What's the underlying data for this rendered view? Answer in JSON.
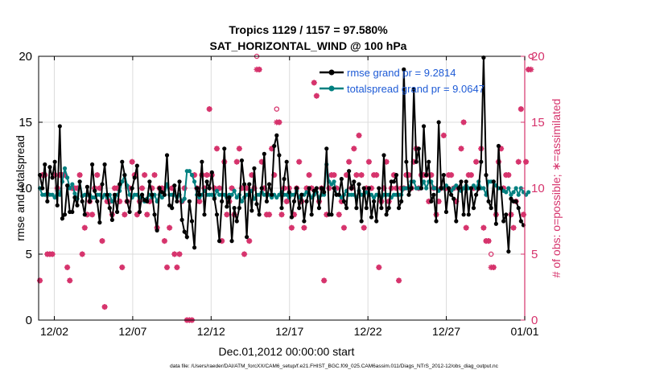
{
  "chart_data": {
    "type": "line",
    "title": "Tropics 1129 / 1157 = 97.580%",
    "subtitle": "SAT_HORIZONTAL_WIND @ 100 hPa",
    "xlabel": "Dec.01,2012 00:00:00 start",
    "ylabel": "rmse and totalspread",
    "ylabel_right": "# of obs: o=possible; ∗=assimilated",
    "footer": "data file: /Users/raeder/DAI/ATM_forcXX/CAM6_setup/f.e21.FHIST_BGC.f09_025.CAM6assim.011/Diags_NTrS_2012-12/obs_diag_output.nc",
    "xlim": [
      0.5,
      31.5
    ],
    "ylim": [
      0,
      20
    ],
    "ylim_right": [
      0,
      20
    ],
    "x_ticks": [
      1.5,
      6.5,
      11.5,
      16.5,
      21.5,
      26.5,
      31.5
    ],
    "x_tick_labels": [
      "12/02",
      "12/07",
      "12/12",
      "12/17",
      "12/22",
      "12/27",
      "01/01"
    ],
    "y_ticks": [
      0,
      5,
      10,
      15,
      20
    ],
    "y_tick_labels": [
      "0",
      "5",
      "10",
      "15",
      "20"
    ],
    "y_ticks_right": [
      0,
      5,
      10,
      15,
      20
    ],
    "y_tick_labels_right": [
      "0",
      "5",
      "10",
      "15",
      "20"
    ],
    "grid": true,
    "legend_position": "top-right",
    "series": [
      {
        "name": "rmse grand pr = 9.2814",
        "color": "#000000",
        "marker": "filled-circle",
        "values": [
          11.0,
          10.0,
          11.8,
          9.0,
          11.6,
          10.8,
          12.0,
          8.7,
          14.7,
          7.7,
          8.0,
          10.2,
          8.2,
          8.2,
          9.3,
          8.7,
          10.5,
          9.0,
          8.0,
          10.1,
          9.0,
          11.8,
          9.8,
          9.0,
          7.4,
          10.3,
          11.8,
          9.5,
          8.5,
          7.6,
          9.5,
          8.2,
          10.3,
          12.0,
          11.0,
          9.0,
          8.2,
          10.0,
          10.8,
          11.7,
          8.2,
          9.5,
          9.1,
          9.0,
          10.5,
          9.5,
          8.0,
          6.8,
          10.0,
          9.7,
          9.5,
          12.5,
          8.7,
          8.5,
          10.2,
          9.0,
          10.5,
          7.6,
          6.7,
          6.3,
          9.0,
          7.5,
          5.5,
          10.0,
          9.5,
          12.0,
          8.0,
          10.5,
          10.0,
          11.2,
          9.2,
          8.0,
          6.0,
          9.0,
          13.0,
          8.6,
          9.3,
          6.0,
          8.5,
          7.5,
          8.5,
          12.1,
          10.3,
          6.3,
          10.3,
          8.3,
          11.5,
          8.8,
          8.0,
          10.0,
          12.6,
          9.0,
          10.3,
          9.5,
          13.2,
          14.0,
          12.5,
          8.5,
          10.7,
          12.0,
          9.7,
          7.8,
          9.0,
          10.0,
          8.5,
          9.5,
          7.5,
          9.0,
          10.0,
          8.0,
          9.8,
          10.0,
          8.5,
          10.0,
          9.7,
          13.0,
          8.0,
          8.0,
          10.0,
          9.5,
          9.5,
          10.7,
          9.0,
          8.5,
          11.3,
          10.0,
          10.5,
          8.5,
          10.3,
          7.5,
          10.0,
          8.5,
          10.0,
          7.8,
          9.0,
          7.5,
          10.0,
          8.5,
          12.5,
          8.0,
          8.5,
          10.5,
          10.5,
          11.0,
          8.5,
          9.0,
          19.0,
          12.0,
          9.5,
          10.0,
          17.5,
          12.0,
          13.0,
          10.0,
          14.7,
          11.0,
          12.0,
          9.0,
          9.5,
          7.5,
          15.0,
          10.0,
          11.0,
          8.2,
          10.0,
          9.5,
          9.2,
          7.5,
          10.0,
          10.5,
          8.0,
          10.5,
          8.0,
          10.0,
          8.5,
          9.5,
          10.0,
          12.0,
          19.9,
          11.0,
          9.0,
          8.5,
          10.5,
          7.3,
          13.2,
          10.0,
          7.5,
          8.0,
          5.2,
          9.2,
          9.0,
          9.0,
          8.5,
          7.5,
          7.2
        ]
      },
      {
        "name": "totalspread grand pr = 9.0647",
        "color": "#008080",
        "marker": "filled-circle",
        "values": [
          10.0,
          9.5,
          9.5,
          9.6,
          9.5,
          9.5,
          9.3,
          9.8,
          9.5,
          10.5,
          11.5,
          10.8,
          10.0,
          10.3,
          9.6,
          9.2,
          10.5,
          9.4,
          9.5,
          9.5,
          9.5,
          9.3,
          9.3,
          9.5,
          9.5,
          9.3,
          9.5,
          9.3,
          9.5,
          9.0,
          9.3,
          9.5,
          9.8,
          10.5,
          11.0,
          10.2,
          9.5,
          9.3,
          9.5,
          9.5,
          9.3,
          9.5,
          9.0,
          9.2,
          9.5,
          9.3,
          9.5,
          9.0,
          9.5,
          9.3,
          9.5,
          10.3,
          9.5,
          9.5,
          9.5,
          9.3,
          9.5,
          9.0,
          9.2,
          11.3,
          11.3,
          11.0,
          10.5,
          9.5,
          9.3,
          9.5,
          9.8,
          9.5,
          9.5,
          9.5,
          9.3,
          9.8,
          9.5,
          9.5,
          9.5,
          9.3,
          9.5,
          9.5,
          9.8,
          9.3,
          9.5,
          9.0,
          9.3,
          9.5,
          9.5,
          9.8,
          9.2,
          9.5,
          9.5,
          9.7,
          9.5,
          9.5,
          9.5,
          9.3,
          9.5,
          9.3,
          9.5,
          9.7,
          9.5,
          9.5,
          9.3,
          9.5,
          9.5,
          9.8,
          9.3,
          9.5,
          9.5,
          9.7,
          9.5,
          9.3,
          9.5,
          9.7,
          9.3,
          9.5,
          9.5,
          11.8,
          10.5,
          10.3,
          10.5,
          9.5,
          9.5,
          9.3,
          9.5,
          9.8,
          9.5,
          9.5,
          9.5,
          9.3,
          9.8,
          9.5,
          9.5,
          9.7,
          9.5,
          9.5,
          9.3,
          9.5,
          9.5,
          9.3,
          9.5,
          9.5,
          9.5,
          9.3,
          9.5,
          9.5,
          9.5,
          9.5,
          10.0,
          10.0,
          10.0,
          10.5,
          10.5,
          10.0,
          10.0,
          10.0,
          10.5,
          10.0,
          10.5,
          10.5,
          10.0,
          10.0,
          9.8,
          10.0,
          10.0,
          10.2,
          10.0,
          9.8,
          10.0,
          10.2,
          10.0,
          9.8,
          10.0,
          10.2,
          10.0,
          10.0,
          10.2,
          10.0,
          10.5,
          10.0,
          10.0,
          9.5,
          10.5,
          10.5,
          10.5,
          10.2,
          10.0,
          10.0,
          9.8,
          9.7,
          10.0,
          9.5,
          9.7,
          10.0,
          9.5,
          10.0,
          9.7,
          9.5,
          9.7
        ]
      }
    ],
    "obs_series": [
      {
        "name": "possible",
        "marker": "o",
        "color": "#d6336c",
        "values": [
          3,
          11,
          11,
          5,
          5,
          5,
          11,
          10,
          11,
          11,
          11,
          4,
          3,
          10,
          10,
          10,
          11,
          5,
          7,
          8,
          9,
          8,
          10,
          11,
          10,
          6,
          1,
          9,
          9,
          8,
          10,
          10,
          9,
          4,
          8,
          9,
          10,
          12,
          11,
          8,
          9,
          10,
          11,
          8,
          9,
          10,
          11,
          7,
          10,
          10,
          6,
          4,
          7,
          10,
          5,
          4,
          5,
          9,
          10,
          0,
          0,
          0,
          11,
          10,
          9,
          11,
          10,
          11,
          16,
          11,
          10,
          13,
          10,
          6,
          12,
          8,
          9,
          10,
          8,
          12,
          13,
          10,
          5,
          10,
          6,
          11,
          10,
          20,
          19,
          12,
          10,
          8,
          8,
          13,
          11,
          16,
          15,
          8,
          10,
          9,
          10,
          7,
          8,
          10,
          12,
          9,
          7,
          10,
          11,
          10,
          18,
          17,
          9,
          10,
          3,
          8,
          10,
          11,
          11,
          10,
          8,
          9,
          7,
          11,
          12,
          10,
          13,
          11,
          14,
          11,
          7,
          10,
          12,
          10,
          11,
          11,
          4,
          9,
          10,
          12,
          9,
          10,
          11,
          10,
          3,
          10,
          10,
          11,
          11,
          10,
          12,
          13,
          10,
          11,
          11,
          11,
          9,
          11,
          10,
          8,
          9,
          10,
          14,
          10,
          11,
          11,
          10,
          9,
          10,
          13,
          15,
          7,
          11,
          11,
          10,
          12,
          10,
          13,
          7,
          6,
          6,
          5,
          4,
          8,
          12,
          13,
          10,
          11,
          11,
          8,
          7,
          9,
          12,
          16,
          8,
          12,
          19,
          20
        ]
      },
      {
        "name": "assimilated",
        "marker": "*",
        "color": "#d6336c",
        "values": [
          3,
          11,
          11,
          5,
          5,
          5,
          11,
          10,
          11,
          11,
          11,
          4,
          3,
          10,
          10,
          10,
          11,
          5,
          7,
          8,
          9,
          8,
          10,
          11,
          10,
          6,
          1,
          9,
          9,
          8,
          10,
          10,
          9,
          4,
          8,
          9,
          10,
          12,
          11,
          8,
          9,
          10,
          11,
          8,
          9,
          10,
          11,
          7,
          10,
          10,
          6,
          4,
          7,
          10,
          5,
          4,
          5,
          9,
          10,
          0,
          0,
          0,
          11,
          10,
          9,
          11,
          10,
          11,
          16,
          11,
          10,
          13,
          10,
          6,
          12,
          8,
          9,
          10,
          8,
          12,
          13,
          10,
          5,
          10,
          6,
          11,
          10,
          19,
          19,
          12,
          10,
          8,
          8,
          13,
          11,
          15,
          15,
          8,
          10,
          9,
          10,
          7,
          8,
          10,
          12,
          9,
          7,
          10,
          11,
          10,
          18,
          17,
          9,
          10,
          3,
          8,
          10,
          11,
          11,
          10,
          8,
          9,
          7,
          11,
          12,
          10,
          13,
          11,
          14,
          11,
          7,
          10,
          12,
          10,
          11,
          11,
          4,
          9,
          10,
          12,
          9,
          10,
          11,
          10,
          3,
          10,
          10,
          11,
          11,
          10,
          12,
          13,
          10,
          11,
          11,
          11,
          9,
          11,
          10,
          8,
          9,
          10,
          14,
          10,
          11,
          11,
          10,
          9,
          10,
          13,
          15,
          7,
          11,
          11,
          10,
          12,
          10,
          13,
          7,
          6,
          6,
          4,
          4,
          8,
          12,
          13,
          10,
          11,
          11,
          8,
          7,
          9,
          12,
          16,
          8,
          12,
          19,
          19
        ]
      }
    ]
  }
}
